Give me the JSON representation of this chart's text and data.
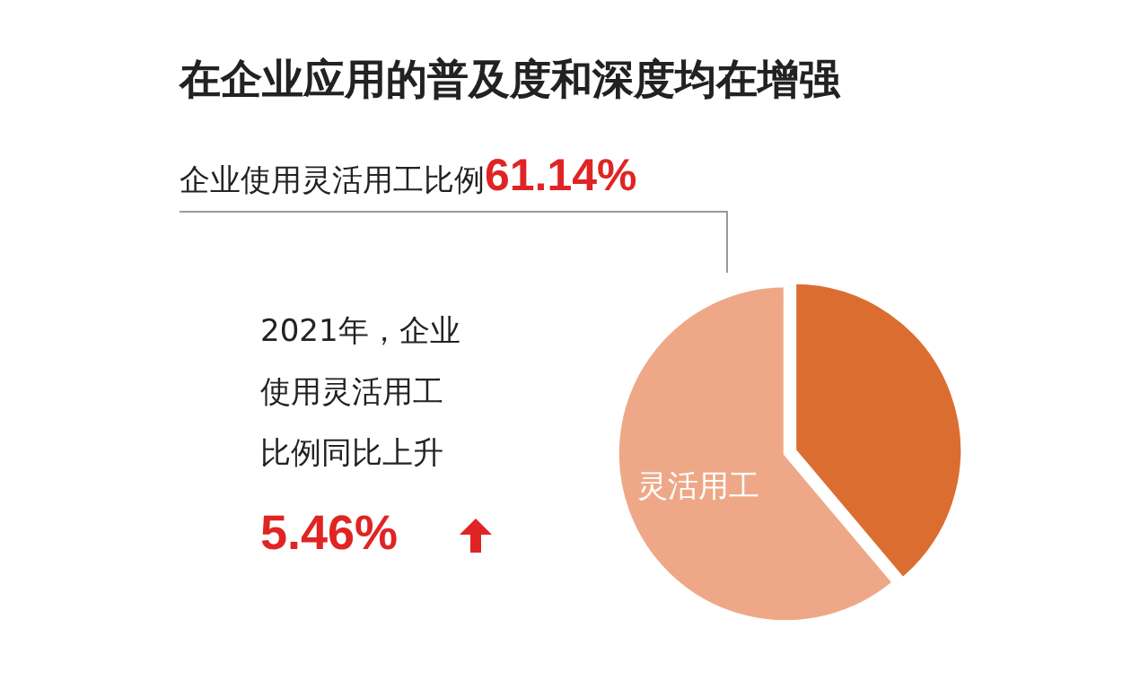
{
  "chart_data": {
    "type": "pie",
    "title": "在企业应用的普及度和深度均在增强",
    "categories": [
      null,
      "灵活用工"
    ],
    "values": [
      38.86,
      61.14
    ],
    "colors": [
      "#dc6d30",
      "#eea888"
    ],
    "annotations": [
      "企业使用灵活用工比例61.14%",
      "2021年，企业使用灵活用工比例同比上升5.46%"
    ]
  }
}
